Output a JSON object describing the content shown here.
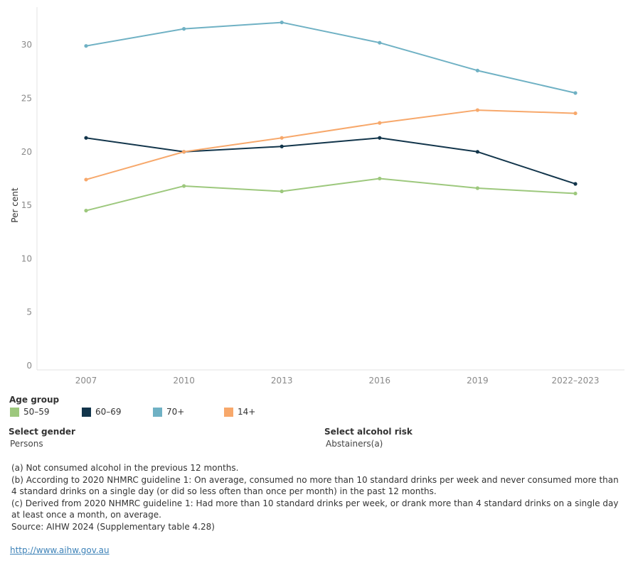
{
  "chart_data": {
    "type": "line",
    "ylabel": "Per cent",
    "xlabel": "",
    "categories": [
      "2007",
      "2010",
      "2013",
      "2016",
      "2019",
      "2022–2023"
    ],
    "ylim": [
      0,
      33
    ],
    "yticks": [
      0,
      5,
      10,
      15,
      20,
      25,
      30
    ],
    "grid": false,
    "series": [
      {
        "name": "50–59",
        "color": "#9dc87d",
        "values": [
          14.5,
          16.8,
          16.3,
          17.5,
          16.6,
          16.1
        ]
      },
      {
        "name": "60–69",
        "color": "#12354b",
        "values": [
          21.3,
          20.0,
          20.5,
          21.3,
          20.0,
          17.0
        ]
      },
      {
        "name": "70+",
        "color": "#6fb1c4",
        "values": [
          29.9,
          31.5,
          32.1,
          30.2,
          27.6,
          25.5
        ]
      },
      {
        "name": "14+",
        "color": "#f7a86b",
        "values": [
          17.4,
          20.0,
          21.3,
          22.7,
          23.9,
          23.6
        ]
      }
    ]
  },
  "legend": {
    "title": "Age group",
    "items": [
      "50–59",
      "60–69",
      "70+",
      "14+"
    ]
  },
  "filters": {
    "gender_label": "Select gender",
    "gender_value": "Persons",
    "risk_label": "Select alcohol risk",
    "risk_value": "Abstainers(a)"
  },
  "notes": [
    "(a) Not consumed alcohol in the previous 12 months.",
    "(b) According to 2020 NHMRC guideline 1: On average, consumed no more than 10 standard drinks per week and never consumed more than 4 standard drinks on a single day (or did so less often than once per month) in the past 12 months.",
    "(c) Derived from 2020 NHMRC guideline 1: Had more than 10 standard drinks per week, or drank more than 4 standard drinks on a single day at least once a month, on average.",
    "Source: AIHW 2024 (Supplementary table 4.28)"
  ],
  "link": "http://www.aihw.gov.au"
}
